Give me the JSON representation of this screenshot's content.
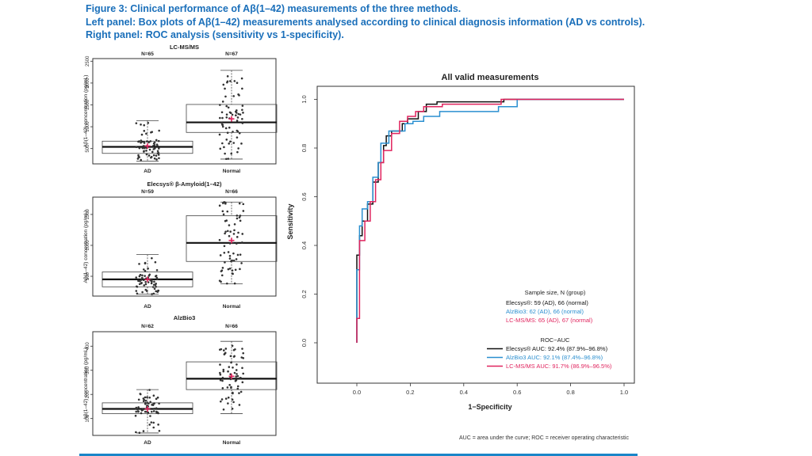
{
  "figure": {
    "title_line1": "Figure 3: Clinical performance of Aβ(1–42) measurements of the three methods.",
    "title_line2": "Left panel: Box plots of Aβ(1–42) measurements analysed according to clinical diagnosis information (AD vs controls).",
    "title_line3": "Right panel: ROC analysis (sensitivity vs 1-specificity).",
    "footnote": "AUC = area under the curve; ROC = receiver operating characteristic"
  },
  "colors": {
    "title": "#1a6fba",
    "black": "#111111",
    "blue": "#2a8fd0",
    "red": "#e0245e",
    "mean": "#e0245e"
  },
  "chart_data": [
    {
      "type": "box",
      "title": "LC-MS/MS",
      "ylabel": "Aβ(1–42) concentration (pg/mL)",
      "ylim": [
        150,
        2560
      ],
      "yticks": [
        500,
        1000,
        1500,
        2000,
        2500
      ],
      "categories": [
        "AD",
        "Normal"
      ],
      "n_labels": [
        "N=65",
        "N=67"
      ],
      "boxes": [
        {
          "min": 210,
          "q1": 390,
          "median": 540,
          "q3": 670,
          "max": 1140,
          "mean": 560
        },
        {
          "min": 260,
          "q1": 870,
          "median": 1100,
          "q3": 1510,
          "max": 2290,
          "mean": 1180
        }
      ]
    },
    {
      "type": "box",
      "title": "Elecsys® β-Amyloid(1–42)",
      "ylabel": "Aβ(1–42) concentration (pg/mL)",
      "ylim": [
        180,
        1780
      ],
      "yticks": [
        500,
        1000,
        1500
      ],
      "categories": [
        "AD",
        "Normal"
      ],
      "n_labels": [
        "N=59",
        "N=66"
      ],
      "boxes": [
        {
          "min": 210,
          "q1": 330,
          "median": 450,
          "q3": 570,
          "max": 850,
          "mean": 450
        },
        {
          "min": 380,
          "q1": 740,
          "median": 1040,
          "q3": 1480,
          "max": 1700,
          "mean": 1080
        }
      ]
    },
    {
      "type": "box",
      "title": "AlzBio3",
      "ylabel": "Aβ(1–42) concentration (pg/mL)",
      "ylim": [
        30,
        460
      ],
      "yticks": [
        100,
        200,
        300,
        400
      ],
      "categories": [
        "AD",
        "Normal"
      ],
      "n_labels": [
        "N=62",
        "N=66"
      ],
      "boxes": [
        {
          "min": 40,
          "q1": 120,
          "median": 140,
          "q3": 165,
          "max": 220,
          "mean": 140
        },
        {
          "min": 120,
          "q1": 220,
          "median": 265,
          "q3": 335,
          "max": 420,
          "mean": 275
        }
      ]
    },
    {
      "type": "line",
      "title": "All valid measurements",
      "xlabel": "1−Specificity",
      "ylabel": "Sensitivity",
      "xlim": [
        -0.16,
        1.0
      ],
      "ylim": [
        -0.18,
        1.04
      ],
      "xticks": [
        0.0,
        0.2,
        0.4,
        0.6,
        0.8,
        1.0
      ],
      "yticks": [
        0.0,
        0.2,
        0.4,
        0.6,
        0.8,
        1.0
      ],
      "legend_sample": {
        "title": "Sample size, N (group)",
        "entries": [
          {
            "text": "Elecsys®: 59 (AD), 66 (normal)",
            "color": "#111111"
          },
          {
            "text": "AlzBio3: 62 (AD), 66 (normal)",
            "color": "#2a8fd0"
          },
          {
            "text": "LC-MS/MS: 65 (AD), 67 (normal)",
            "color": "#e0245e"
          }
        ]
      },
      "legend_auc": {
        "title": "ROC−AUC",
        "entries": [
          {
            "text": "Elecsys® AUC: 92.4% (87.9%–96.8%)",
            "color": "#111111"
          },
          {
            "text": "AlzBio3 AUC: 92.1% (87.4%–96.8%)",
            "color": "#2a8fd0"
          },
          {
            "text": "LC-MS/MS AUC: 91.7% (86.9%–96.5%)",
            "color": "#e0245e"
          }
        ]
      },
      "series": [
        {
          "name": "Elecsys",
          "color": "#111111",
          "x": [
            0,
            0,
            0.01,
            0.01,
            0.02,
            0.02,
            0.04,
            0.04,
            0.06,
            0.06,
            0.08,
            0.08,
            0.1,
            0.1,
            0.11,
            0.11,
            0.13,
            0.13,
            0.17,
            0.17,
            0.19,
            0.19,
            0.23,
            0.23,
            0.26,
            0.26,
            0.3,
            0.3,
            0.55,
            0.55,
            1.0
          ],
          "y": [
            0,
            0.36,
            0.36,
            0.44,
            0.44,
            0.5,
            0.5,
            0.57,
            0.57,
            0.66,
            0.66,
            0.74,
            0.74,
            0.81,
            0.81,
            0.85,
            0.85,
            0.87,
            0.87,
            0.9,
            0.9,
            0.92,
            0.92,
            0.95,
            0.95,
            0.98,
            0.98,
            0.99,
            0.99,
            1.0,
            1.0
          ]
        },
        {
          "name": "AlzBio3",
          "color": "#2a8fd0",
          "x": [
            0,
            0,
            0.01,
            0.01,
            0.02,
            0.02,
            0.04,
            0.04,
            0.06,
            0.06,
            0.08,
            0.08,
            0.09,
            0.09,
            0.12,
            0.12,
            0.18,
            0.18,
            0.21,
            0.21,
            0.25,
            0.25,
            0.31,
            0.31,
            0.53,
            0.53,
            0.6,
            0.6,
            1.0
          ],
          "y": [
            0,
            0.3,
            0.3,
            0.48,
            0.48,
            0.55,
            0.55,
            0.58,
            0.58,
            0.68,
            0.68,
            0.74,
            0.74,
            0.82,
            0.82,
            0.87,
            0.87,
            0.9,
            0.9,
            0.91,
            0.91,
            0.93,
            0.93,
            0.95,
            0.95,
            0.97,
            0.97,
            1.0,
            1.0
          ]
        },
        {
          "name": "LC-MS/MS",
          "color": "#e0245e",
          "x": [
            0,
            0,
            0.01,
            0.01,
            0.03,
            0.03,
            0.05,
            0.05,
            0.07,
            0.07,
            0.09,
            0.09,
            0.1,
            0.1,
            0.13,
            0.13,
            0.16,
            0.16,
            0.19,
            0.19,
            0.22,
            0.22,
            0.25,
            0.25,
            0.32,
            0.32,
            0.54,
            0.54,
            1.0
          ],
          "y": [
            0,
            0.1,
            0.1,
            0.42,
            0.42,
            0.5,
            0.5,
            0.58,
            0.58,
            0.67,
            0.67,
            0.74,
            0.74,
            0.79,
            0.79,
            0.86,
            0.86,
            0.91,
            0.91,
            0.93,
            0.93,
            0.95,
            0.95,
            0.97,
            0.97,
            0.98,
            0.98,
            1.0,
            1.0
          ]
        }
      ]
    }
  ]
}
